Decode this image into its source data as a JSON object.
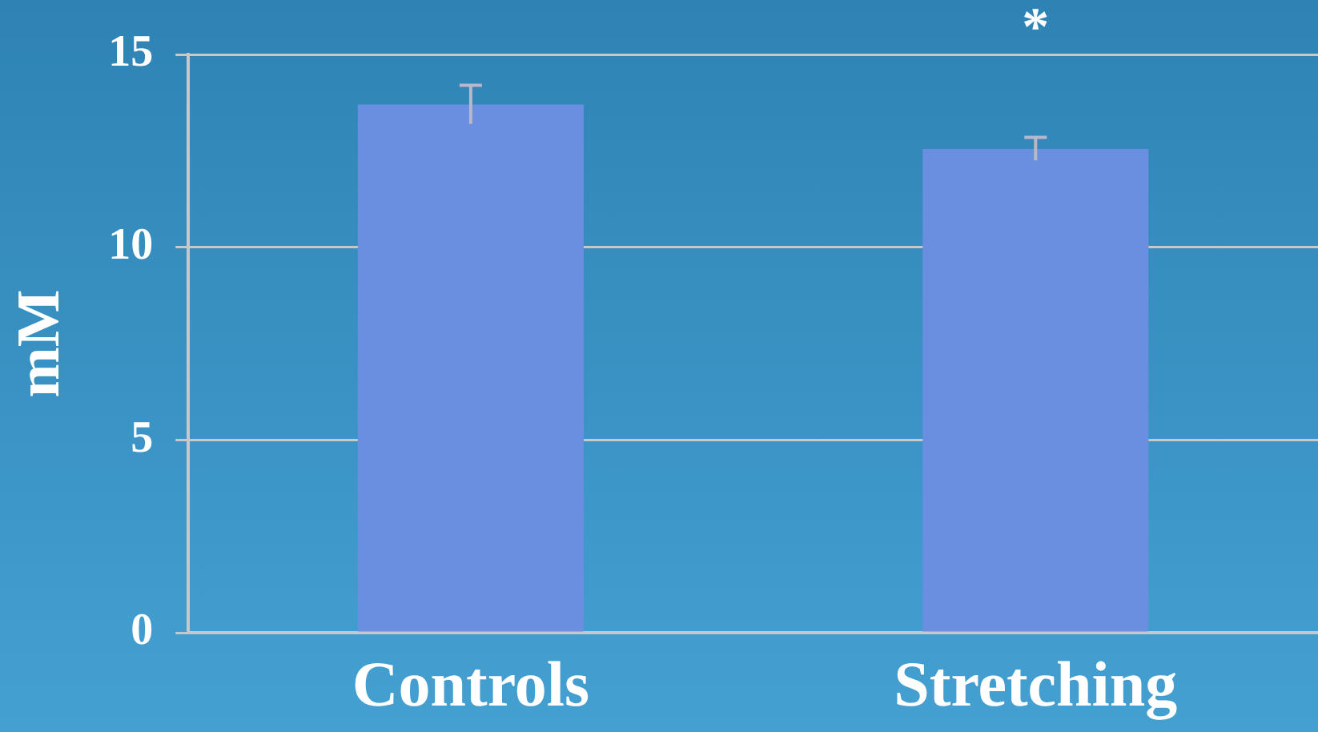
{
  "chart_data": {
    "type": "bar",
    "ylabel": "mM",
    "categories": [
      "Controls",
      "Stretching"
    ],
    "values": [
      13.7,
      12.55
    ],
    "errors": [
      0.5,
      0.3
    ],
    "color": "#6a8ee0",
    "ylim": [
      0,
      15
    ],
    "yticks": [
      0,
      5,
      10,
      15
    ],
    "grid": "y",
    "legend": false,
    "annotations": [
      "*"
    ]
  }
}
